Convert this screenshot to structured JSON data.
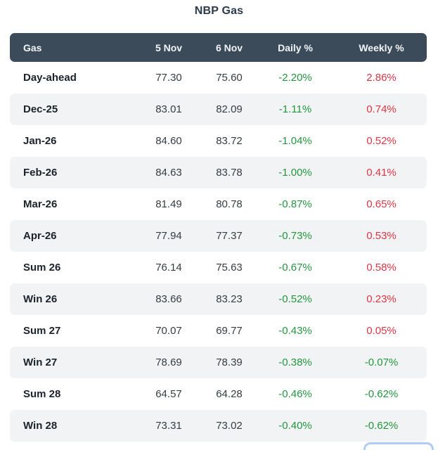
{
  "page": {
    "title": "NBP Gas"
  },
  "colors": {
    "header_bg": "#3c4b5a",
    "header_text": "#f2f5f8",
    "row_alt_bg": "#f2f3f4",
    "positive_green": "#23963f",
    "negative_red": "#dc3545",
    "label_text": "#1b222b",
    "value_text": "#363c44",
    "partial_button_border": "#aecbfa"
  },
  "chart_data": {
    "type": "table",
    "title": "NBP Gas",
    "columns": [
      "Gas",
      "5 Nov",
      "6 Nov",
      "Daily %",
      "Weekly %"
    ],
    "rows": [
      {
        "gas": "Day-ahead",
        "nov5": "77.30",
        "nov6": "75.60",
        "daily_pct": "-2.20%",
        "daily_color": "green",
        "weekly_pct": "2.86%",
        "weekly_color": "red"
      },
      {
        "gas": "Dec-25",
        "nov5": "83.01",
        "nov6": "82.09",
        "daily_pct": "-1.11%",
        "daily_color": "green",
        "weekly_pct": "0.74%",
        "weekly_color": "red"
      },
      {
        "gas": "Jan-26",
        "nov5": "84.60",
        "nov6": "83.72",
        "daily_pct": "-1.04%",
        "daily_color": "green",
        "weekly_pct": "0.52%",
        "weekly_color": "red"
      },
      {
        "gas": "Feb-26",
        "nov5": "84.63",
        "nov6": "83.78",
        "daily_pct": "-1.00%",
        "daily_color": "green",
        "weekly_pct": "0.41%",
        "weekly_color": "red"
      },
      {
        "gas": "Mar-26",
        "nov5": "81.49",
        "nov6": "80.78",
        "daily_pct": "-0.87%",
        "daily_color": "green",
        "weekly_pct": "0.65%",
        "weekly_color": "red"
      },
      {
        "gas": "Apr-26",
        "nov5": "77.94",
        "nov6": "77.37",
        "daily_pct": "-0.73%",
        "daily_color": "green",
        "weekly_pct": "0.53%",
        "weekly_color": "red"
      },
      {
        "gas": "Sum 26",
        "nov5": "76.14",
        "nov6": "75.63",
        "daily_pct": "-0.67%",
        "daily_color": "green",
        "weekly_pct": "0.58%",
        "weekly_color": "red"
      },
      {
        "gas": "Win 26",
        "nov5": "83.66",
        "nov6": "83.23",
        "daily_pct": "-0.52%",
        "daily_color": "green",
        "weekly_pct": "0.23%",
        "weekly_color": "red"
      },
      {
        "gas": "Sum 27",
        "nov5": "70.07",
        "nov6": "69.77",
        "daily_pct": "-0.43%",
        "daily_color": "green",
        "weekly_pct": "0.05%",
        "weekly_color": "red"
      },
      {
        "gas": "Win 27",
        "nov5": "78.69",
        "nov6": "78.39",
        "daily_pct": "-0.38%",
        "daily_color": "green",
        "weekly_pct": "-0.07%",
        "weekly_color": "green"
      },
      {
        "gas": "Sum 28",
        "nov5": "64.57",
        "nov6": "64.28",
        "daily_pct": "-0.46%",
        "daily_color": "green",
        "weekly_pct": "-0.62%",
        "weekly_color": "green"
      },
      {
        "gas": "Win 28",
        "nov5": "73.31",
        "nov6": "73.02",
        "daily_pct": "-0.40%",
        "daily_color": "green",
        "weekly_pct": "-0.62%",
        "weekly_color": "green"
      }
    ]
  }
}
